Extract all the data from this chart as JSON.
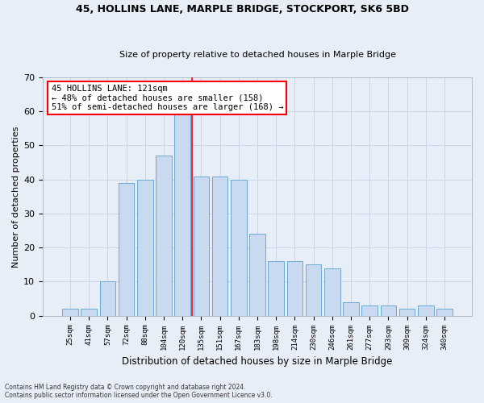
{
  "title1": "45, HOLLINS LANE, MARPLE BRIDGE, STOCKPORT, SK6 5BD",
  "title2": "Size of property relative to detached houses in Marple Bridge",
  "xlabel": "Distribution of detached houses by size in Marple Bridge",
  "ylabel": "Number of detached properties",
  "categories": [
    "25sqm",
    "41sqm",
    "57sqm",
    "72sqm",
    "88sqm",
    "104sqm",
    "120sqm",
    "135sqm",
    "151sqm",
    "167sqm",
    "183sqm",
    "198sqm",
    "214sqm",
    "230sqm",
    "246sqm",
    "261sqm",
    "277sqm",
    "293sqm",
    "309sqm",
    "324sqm",
    "340sqm"
  ],
  "values": [
    2,
    2,
    10,
    39,
    40,
    47,
    59,
    41,
    41,
    40,
    24,
    16,
    16,
    15,
    14,
    4,
    3,
    3,
    2,
    3,
    2
  ],
  "bar_color": "#c8d9f0",
  "bar_edge_color": "#6aaad4",
  "vline_color": "red",
  "annotation_text": "45 HOLLINS LANE: 121sqm\n← 48% of detached houses are smaller (158)\n51% of semi-detached houses are larger (168) →",
  "annotation_box_color": "white",
  "annotation_box_edge": "red",
  "ylim": [
    0,
    70
  ],
  "yticks": [
    0,
    10,
    20,
    30,
    40,
    50,
    60,
    70
  ],
  "grid_color": "#ccd5e5",
  "bg_color": "#e8eef8",
  "fig_bg_color": "#e8eef8",
  "footnote1": "Contains HM Land Registry data © Crown copyright and database right 2024.",
  "footnote2": "Contains public sector information licensed under the Open Government Licence v3.0."
}
